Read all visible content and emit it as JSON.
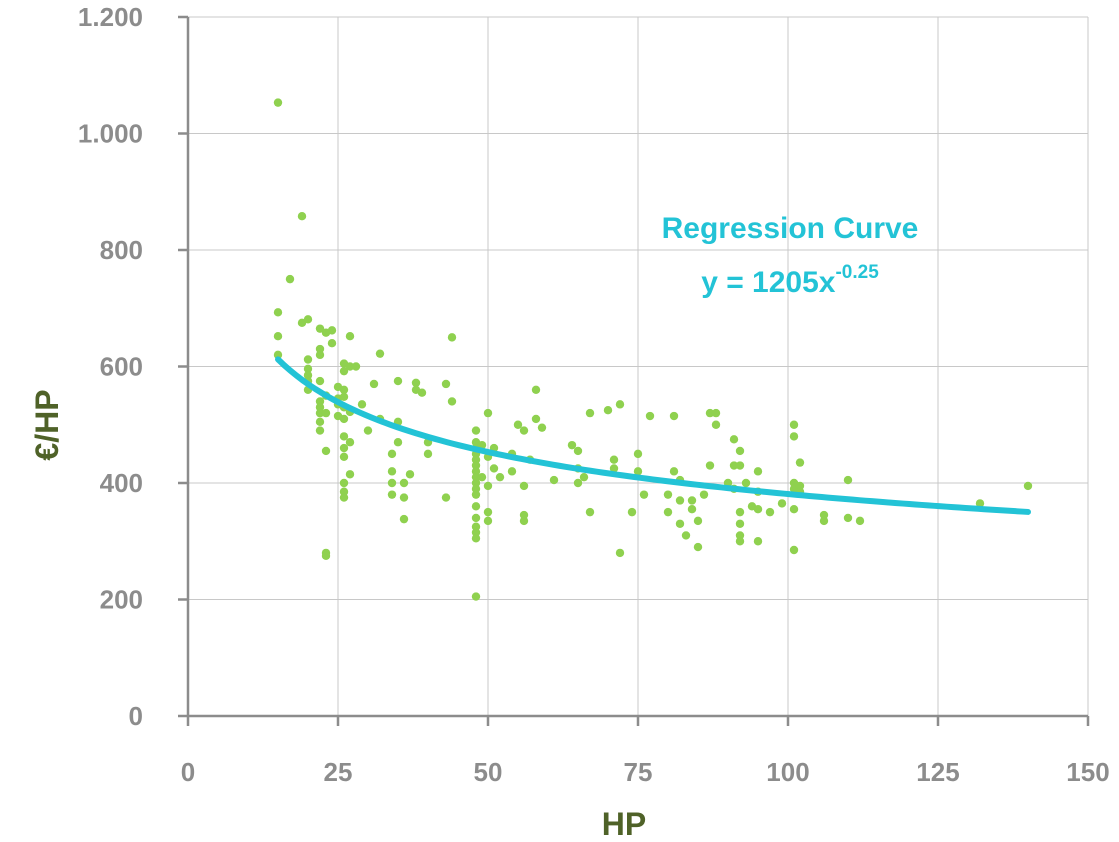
{
  "chart_data": {
    "type": "scatter",
    "title": "",
    "xlabel": "HP",
    "ylabel": "€/HP",
    "xlim": [
      0,
      150
    ],
    "ylim": [
      0,
      1200
    ],
    "x_ticks": [
      0,
      25,
      50,
      75,
      100,
      125,
      150
    ],
    "x_tick_labels": [
      "0",
      "25",
      "50",
      "75",
      "100",
      "125",
      "150"
    ],
    "y_ticks": [
      0,
      200,
      400,
      600,
      800,
      1000,
      1200
    ],
    "y_tick_labels": [
      "0",
      "200",
      "400",
      "600",
      "800",
      "1.000",
      "1.200"
    ],
    "grid": true,
    "colors": {
      "points": "#8fd14f",
      "curve": "#23c3d6",
      "axis_title": "#4f6228",
      "ticks": "#8c8c8c"
    },
    "series": [
      {
        "points": [
          [
            15,
            1053
          ],
          [
            15,
            693
          ],
          [
            15,
            652
          ],
          [
            15,
            620
          ],
          [
            17,
            750
          ],
          [
            19,
            858
          ],
          [
            19,
            675
          ],
          [
            20,
            681
          ],
          [
            20,
            612
          ],
          [
            20,
            596
          ],
          [
            20,
            585
          ],
          [
            20,
            575
          ],
          [
            20,
            560
          ],
          [
            22,
            665
          ],
          [
            22,
            630
          ],
          [
            22,
            620
          ],
          [
            22,
            575
          ],
          [
            22,
            540
          ],
          [
            22,
            530
          ],
          [
            22,
            520
          ],
          [
            22,
            505
          ],
          [
            22,
            490
          ],
          [
            23,
            658
          ],
          [
            23,
            550
          ],
          [
            23,
            520
          ],
          [
            23,
            455
          ],
          [
            23,
            280
          ],
          [
            23,
            275
          ],
          [
            24,
            662
          ],
          [
            24,
            640
          ],
          [
            25,
            565
          ],
          [
            25,
            545
          ],
          [
            25,
            535
          ],
          [
            25,
            515
          ],
          [
            26,
            605
          ],
          [
            26,
            592
          ],
          [
            26,
            560
          ],
          [
            26,
            548
          ],
          [
            26,
            530
          ],
          [
            26,
            510
          ],
          [
            26,
            480
          ],
          [
            26,
            460
          ],
          [
            26,
            445
          ],
          [
            26,
            400
          ],
          [
            26,
            385
          ],
          [
            26,
            375
          ],
          [
            27,
            652
          ],
          [
            27,
            600
          ],
          [
            27,
            522
          ],
          [
            27,
            470
          ],
          [
            27,
            415
          ],
          [
            28,
            600
          ],
          [
            29,
            535
          ],
          [
            30,
            490
          ],
          [
            31,
            570
          ],
          [
            32,
            622
          ],
          [
            32,
            510
          ],
          [
            34,
            450
          ],
          [
            34,
            420
          ],
          [
            34,
            400
          ],
          [
            34,
            380
          ],
          [
            35,
            575
          ],
          [
            35,
            505
          ],
          [
            35,
            470
          ],
          [
            36,
            400
          ],
          [
            36,
            375
          ],
          [
            36,
            338
          ],
          [
            37,
            415
          ],
          [
            38,
            572
          ],
          [
            38,
            560
          ],
          [
            39,
            555
          ],
          [
            40,
            470
          ],
          [
            40,
            450
          ],
          [
            43,
            570
          ],
          [
            43,
            375
          ],
          [
            44,
            650
          ],
          [
            44,
            540
          ],
          [
            48,
            490
          ],
          [
            48,
            470
          ],
          [
            48,
            460
          ],
          [
            48,
            450
          ],
          [
            48,
            440
          ],
          [
            48,
            430
          ],
          [
            48,
            420
          ],
          [
            48,
            410
          ],
          [
            48,
            400
          ],
          [
            48,
            390
          ],
          [
            48,
            380
          ],
          [
            48,
            360
          ],
          [
            48,
            340
          ],
          [
            48,
            325
          ],
          [
            48,
            315
          ],
          [
            48,
            305
          ],
          [
            48,
            205
          ],
          [
            49,
            465
          ],
          [
            49,
            410
          ],
          [
            50,
            520
          ],
          [
            50,
            445
          ],
          [
            50,
            395
          ],
          [
            50,
            350
          ],
          [
            50,
            335
          ],
          [
            51,
            460
          ],
          [
            51,
            425
          ],
          [
            52,
            410
          ],
          [
            54,
            450
          ],
          [
            54,
            420
          ],
          [
            55,
            500
          ],
          [
            56,
            490
          ],
          [
            56,
            395
          ],
          [
            56,
            345
          ],
          [
            56,
            335
          ],
          [
            57,
            440
          ],
          [
            58,
            560
          ],
          [
            58,
            510
          ],
          [
            59,
            495
          ],
          [
            61,
            405
          ],
          [
            64,
            465
          ],
          [
            65,
            455
          ],
          [
            65,
            425
          ],
          [
            65,
            400
          ],
          [
            66,
            410
          ],
          [
            67,
            520
          ],
          [
            67,
            350
          ],
          [
            70,
            525
          ],
          [
            71,
            440
          ],
          [
            71,
            425
          ],
          [
            72,
            535
          ],
          [
            72,
            280
          ],
          [
            74,
            350
          ],
          [
            75,
            450
          ],
          [
            75,
            420
          ],
          [
            76,
            380
          ],
          [
            77,
            515
          ],
          [
            80,
            380
          ],
          [
            80,
            350
          ],
          [
            81,
            515
          ],
          [
            81,
            420
          ],
          [
            82,
            405
          ],
          [
            82,
            370
          ],
          [
            82,
            330
          ],
          [
            83,
            310
          ],
          [
            84,
            370
          ],
          [
            84,
            355
          ],
          [
            85,
            335
          ],
          [
            85,
            290
          ],
          [
            86,
            380
          ],
          [
            87,
            520
          ],
          [
            87,
            430
          ],
          [
            88,
            520
          ],
          [
            88,
            500
          ],
          [
            90,
            400
          ],
          [
            91,
            475
          ],
          [
            91,
            430
          ],
          [
            91,
            390
          ],
          [
            92,
            455
          ],
          [
            92,
            430
          ],
          [
            92,
            350
          ],
          [
            92,
            330
          ],
          [
            92,
            310
          ],
          [
            92,
            300
          ],
          [
            93,
            400
          ],
          [
            94,
            360
          ],
          [
            95,
            420
          ],
          [
            95,
            385
          ],
          [
            95,
            355
          ],
          [
            95,
            300
          ],
          [
            97,
            350
          ],
          [
            99,
            365
          ],
          [
            101,
            500
          ],
          [
            101,
            480
          ],
          [
            101,
            400
          ],
          [
            101,
            390
          ],
          [
            101,
            355
          ],
          [
            101,
            285
          ],
          [
            102,
            435
          ],
          [
            102,
            395
          ],
          [
            102,
            385
          ],
          [
            106,
            345
          ],
          [
            106,
            335
          ],
          [
            110,
            405
          ],
          [
            110,
            340
          ],
          [
            112,
            335
          ],
          [
            132,
            365
          ],
          [
            140,
            395
          ]
        ]
      },
      {
        "type": "line",
        "equation": "y = 1205x^-0.25",
        "coefficient": 1205,
        "exponent": -0.25,
        "x_range": [
          15,
          140
        ]
      }
    ],
    "annotations": [
      {
        "text": "Regression Curve",
        "equation_prefix": "y = 1205x",
        "equation_exponent": "-0.25"
      }
    ]
  }
}
